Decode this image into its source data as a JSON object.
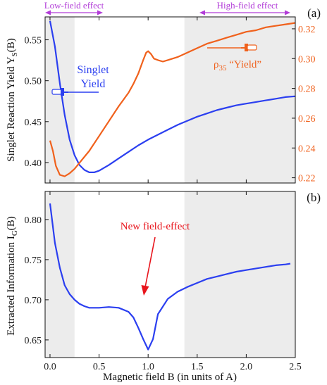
{
  "colors": {
    "blue": "#2b3ff0",
    "orange": "#f0611c",
    "purple": "#b23cd8",
    "red": "#e8141c",
    "shade": "#ececec",
    "axis": "#111111"
  },
  "annotations": {
    "low_field": "Low-field effect",
    "high_field": "High-field effect",
    "panel_a": "(a)",
    "panel_b": "(b)",
    "singlet_line1": "Singlet",
    "singlet_line2": "Yield",
    "rho_label": "ρ",
    "rho_sub": "35",
    "rho_yield": " “Yield”",
    "new_field_effect": "New field-effect"
  },
  "chart_data": [
    {
      "type": "line",
      "panel": "(a)",
      "ylabel": "Singlet Reaction Yield Y",
      "ylabel_sub": "S",
      "ylabel_suffix": "(B)",
      "xlim": [
        -0.05,
        2.5
      ],
      "ylim": [
        0.375,
        0.578
      ],
      "yticks": [
        0.4,
        0.45,
        0.5,
        0.55
      ],
      "ytick_labels": [
        "0.40",
        "0.45",
        "0.50",
        "0.55"
      ],
      "secondary_ylim": [
        0.2165,
        0.328
      ],
      "secondary_yticks": [
        0.22,
        0.24,
        0.26,
        0.28,
        0.3,
        0.32
      ],
      "secondary_ytick_labels": [
        "0.22",
        "0.24",
        "0.26",
        "0.28",
        "0.30",
        "0.32"
      ],
      "shaded_x_ranges": [
        [
          -0.05,
          0.25
        ],
        [
          1.37,
          2.5
        ]
      ],
      "series": [
        {
          "name": "Singlet Yield",
          "axis": "left",
          "x": [
            0.0,
            0.05,
            0.1,
            0.15,
            0.2,
            0.25,
            0.3,
            0.35,
            0.4,
            0.45,
            0.5,
            0.6,
            0.7,
            0.8,
            0.9,
            1.0,
            1.1,
            1.2,
            1.3,
            1.4,
            1.5,
            1.6,
            1.7,
            1.8,
            1.9,
            2.0,
            2.1,
            2.2,
            2.3,
            2.4,
            2.5
          ],
          "y": [
            0.573,
            0.542,
            0.497,
            0.458,
            0.428,
            0.409,
            0.397,
            0.391,
            0.388,
            0.388,
            0.39,
            0.397,
            0.405,
            0.413,
            0.421,
            0.428,
            0.434,
            0.44,
            0.446,
            0.451,
            0.456,
            0.46,
            0.464,
            0.467,
            0.47,
            0.472,
            0.474,
            0.476,
            0.478,
            0.48,
            0.481
          ]
        },
        {
          "name": "ρ35 “Yield”",
          "axis": "right",
          "x": [
            0.0,
            0.03,
            0.06,
            0.1,
            0.15,
            0.2,
            0.25,
            0.3,
            0.4,
            0.5,
            0.6,
            0.7,
            0.8,
            0.85,
            0.9,
            0.95,
            0.98,
            1.0,
            1.03,
            1.06,
            1.1,
            1.15,
            1.2,
            1.3,
            1.4,
            1.5,
            1.6,
            1.7,
            1.8,
            1.9,
            2.0,
            2.1,
            2.2,
            2.3,
            2.4,
            2.5
          ],
          "y": [
            0.245,
            0.238,
            0.228,
            0.222,
            0.221,
            0.223,
            0.226,
            0.23,
            0.238,
            0.248,
            0.258,
            0.268,
            0.277,
            0.283,
            0.29,
            0.299,
            0.304,
            0.305,
            0.303,
            0.3,
            0.299,
            0.298,
            0.299,
            0.301,
            0.304,
            0.307,
            0.31,
            0.312,
            0.314,
            0.316,
            0.318,
            0.319,
            0.321,
            0.322,
            0.323,
            0.324
          ]
        }
      ]
    },
    {
      "type": "line",
      "panel": "(b)",
      "xlabel": "Magnetic field B (in units of A)",
      "ylabel": "Extracted Information  I",
      "ylabel_sub": "G",
      "ylabel_suffix": "(B)",
      "xlim": [
        -0.05,
        2.5
      ],
      "ylim": [
        0.628,
        0.835
      ],
      "xticks": [
        0.0,
        0.5,
        1.0,
        1.5,
        2.0,
        2.5
      ],
      "xtick_labels": [
        "0.0",
        "0.5",
        "1.0",
        "1.5",
        "2.0",
        "2.5"
      ],
      "yticks": [
        0.65,
        0.7,
        0.75,
        0.8
      ],
      "ytick_labels": [
        "0.65",
        "0.70",
        "0.75",
        "0.80"
      ],
      "shaded_x_ranges": [
        [
          -0.05,
          0.25
        ],
        [
          1.37,
          2.5
        ]
      ],
      "series": [
        {
          "name": "",
          "x": [
            0.0,
            0.05,
            0.1,
            0.15,
            0.2,
            0.25,
            0.3,
            0.35,
            0.4,
            0.5,
            0.6,
            0.7,
            0.8,
            0.85,
            0.9,
            0.95,
            1.0,
            1.05,
            1.1,
            1.2,
            1.3,
            1.4,
            1.5,
            1.6,
            1.7,
            1.8,
            1.9,
            2.0,
            2.1,
            2.2,
            2.3,
            2.4,
            2.45
          ],
          "y": [
            0.82,
            0.771,
            0.74,
            0.718,
            0.707,
            0.7,
            0.695,
            0.692,
            0.69,
            0.69,
            0.691,
            0.69,
            0.685,
            0.678,
            0.665,
            0.651,
            0.638,
            0.651,
            0.682,
            0.701,
            0.71,
            0.716,
            0.721,
            0.726,
            0.729,
            0.732,
            0.735,
            0.737,
            0.739,
            0.741,
            0.743,
            0.744,
            0.745
          ]
        }
      ]
    }
  ]
}
